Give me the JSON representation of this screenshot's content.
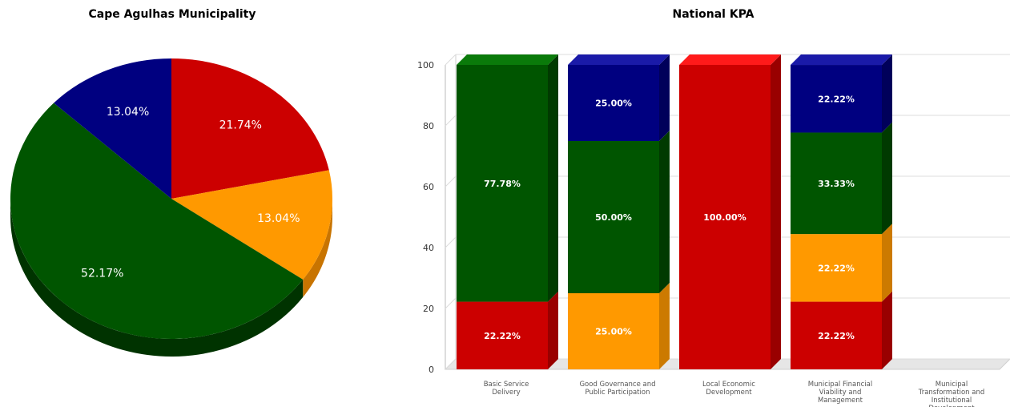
{
  "chart_data": [
    {
      "type": "pie",
      "title": "Cape Agulhas Municipality",
      "slices": [
        {
          "label": "21.74%",
          "value": 21.74,
          "color": "#cc0000",
          "side": "#8a0000"
        },
        {
          "label": "13.04%",
          "value": 13.04,
          "color": "#ff9900",
          "side": "#c87400"
        },
        {
          "label": "52.17%",
          "value": 52.17,
          "color": "#005500",
          "side": "#003300"
        },
        {
          "label": "13.04%",
          "value": 13.04,
          "color": "#000080",
          "side": "#000050"
        }
      ]
    },
    {
      "type": "bar",
      "stacked": true,
      "title": "National KPA",
      "ylim": [
        0,
        100
      ],
      "yticks": [
        "0",
        "20",
        "40",
        "60",
        "80",
        "100"
      ],
      "categories": [
        [
          "Basic Service",
          "Delivery"
        ],
        [
          "Good Governance and",
          "Public Participation"
        ],
        [
          "Local Economic",
          "Development"
        ],
        [
          "Municipal Financial",
          "Viability and",
          "Management"
        ],
        [
          "Municipal",
          "Transformation and",
          "Institutional",
          "Development"
        ]
      ],
      "series": [
        {
          "color": "#cc0000",
          "side": "#990000",
          "top": "#ff1a1a",
          "values": [
            22.22,
            0,
            100,
            22.22,
            0
          ],
          "labels": [
            "22.22%",
            "",
            "100.00%",
            "22.22%",
            ""
          ]
        },
        {
          "color": "#ff9900",
          "side": "#cc7a00",
          "top": "#ffb340",
          "values": [
            0,
            25,
            0,
            22.22,
            0
          ],
          "labels": [
            "",
            "25.00%",
            "",
            "22.22%",
            ""
          ]
        },
        {
          "color": "#005500",
          "side": "#003a00",
          "top": "#0a7a0a",
          "values": [
            77.78,
            50,
            0,
            33.33,
            0
          ],
          "labels": [
            "77.78%",
            "50.00%",
            "",
            "33.33%",
            ""
          ]
        },
        {
          "color": "#000080",
          "side": "#00005a",
          "top": "#1a1aa8",
          "values": [
            0,
            25,
            0,
            22.22,
            0
          ],
          "labels": [
            "",
            "25.00%",
            "",
            "22.22%",
            ""
          ]
        }
      ]
    }
  ]
}
